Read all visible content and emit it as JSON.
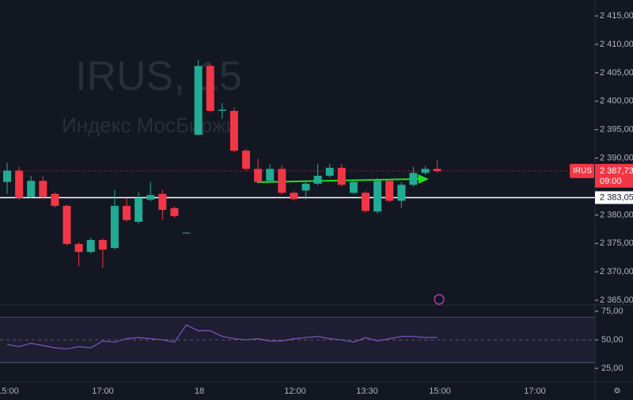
{
  "chart_data": {
    "type": "candlestick",
    "symbol": "IRUS, 15",
    "description": "Индекс МосБиржи",
    "tag": "IRUS",
    "open": [
      2385.8,
      2387.8,
      2383.2,
      2386.0,
      2383.7,
      2381.6,
      2374.9,
      2373.5,
      2375.6,
      2374.2,
      2381.6,
      2378.8,
      2382.7,
      2383.7,
      2381.2,
      2376.8,
      2394.1,
      2406.2,
      2398.3,
      2398.3,
      2391.3,
      2388.1,
      2386.0,
      2388.1,
      2383.9,
      2384.3,
      2385.5,
      2386.9,
      2388.3,
      2383.9,
      2383.9,
      2380.6,
      2386.0,
      2382.5,
      2385.3,
      2387.4,
      2388.1
    ],
    "high": [
      2389.2,
      2388.5,
      2386.9,
      2386.8,
      2384.0,
      2381.8,
      2375.2,
      2376.0,
      2375.9,
      2384.4,
      2383.0,
      2384.0,
      2385.8,
      2384.4,
      2381.5,
      2376.9,
      2407.3,
      2406.6,
      2399.7,
      2399.0,
      2391.6,
      2389.9,
      2388.9,
      2388.8,
      2384.2,
      2385.8,
      2389.0,
      2389.0,
      2389.0,
      2386.0,
      2384.2,
      2386.5,
      2386.3,
      2385.8,
      2388.5,
      2388.6,
      2389.6
    ],
    "low": [
      2383.7,
      2382.7,
      2383.0,
      2382.8,
      2381.3,
      2374.6,
      2371.0,
      2373.2,
      2370.7,
      2373.9,
      2378.8,
      2378.5,
      2382.4,
      2379.1,
      2379.5,
      2376.7,
      2394.0,
      2398.0,
      2396.9,
      2391.0,
      2387.8,
      2385.5,
      2385.6,
      2383.6,
      2382.5,
      2382.7,
      2385.2,
      2386.6,
      2385.0,
      2383.6,
      2380.4,
      2380.2,
      2382.2,
      2381.2,
      2385.0,
      2387.1,
      2387.4
    ],
    "close": [
      2387.8,
      2383.0,
      2386.0,
      2383.2,
      2381.6,
      2374.9,
      2373.5,
      2375.6,
      2373.9,
      2381.6,
      2379.1,
      2383.0,
      2383.5,
      2380.9,
      2379.8,
      2376.9,
      2406.2,
      2398.3,
      2398.5,
      2391.3,
      2388.1,
      2385.8,
      2388.1,
      2383.9,
      2382.8,
      2385.5,
      2386.9,
      2388.3,
      2385.3,
      2385.8,
      2380.7,
      2386.0,
      2382.5,
      2385.3,
      2387.4,
      2388.1,
      2387.7
    ],
    "up_color": "#22ab94",
    "down_color": "#f23645",
    "ylim": [
      2363.2,
      2417.8
    ],
    "yticks": [
      {
        "value": 2415,
        "label": "2 415,00"
      },
      {
        "value": 2410,
        "label": "2 410,00"
      },
      {
        "value": 2405,
        "label": "2 405,00"
      },
      {
        "value": 2400,
        "label": "2 400,00"
      },
      {
        "value": 2395,
        "label": "2 395,00"
      },
      {
        "value": 2390,
        "label": "2 390,00"
      },
      {
        "value": 2380,
        "label": "2 380,00"
      },
      {
        "value": 2375,
        "label": "2 375,00"
      },
      {
        "value": 2370,
        "label": "2 370,00"
      },
      {
        "value": 2365,
        "label": "2 365,00"
      }
    ],
    "last_price": {
      "value": 2387.73,
      "label": "2 387,73"
    },
    "countdown": "09:00",
    "level": {
      "value": 2383.05,
      "label": "2 383,05"
    },
    "x_labels": [
      "15:00",
      "17:00",
      "18",
      "12:00",
      "13:30",
      "15:00",
      "17:00"
    ],
    "rsi": {
      "values": [
        46,
        44,
        47,
        45,
        43,
        42,
        44,
        43,
        49,
        48,
        51,
        52,
        51,
        50,
        48,
        63,
        58,
        58,
        53,
        51,
        50,
        51,
        49,
        49,
        51,
        52,
        53,
        51,
        50,
        48,
        52,
        49,
        51,
        53,
        53,
        52,
        52
      ],
      "color": "#7e57c2",
      "ylim": [
        13.2,
        80.6
      ],
      "yticks": [
        {
          "value": 75,
          "label": "75,00"
        },
        {
          "value": 50,
          "label": "50,00"
        },
        {
          "value": 25,
          "label": "25,00"
        }
      ],
      "band": [
        70,
        30
      ]
    }
  }
}
